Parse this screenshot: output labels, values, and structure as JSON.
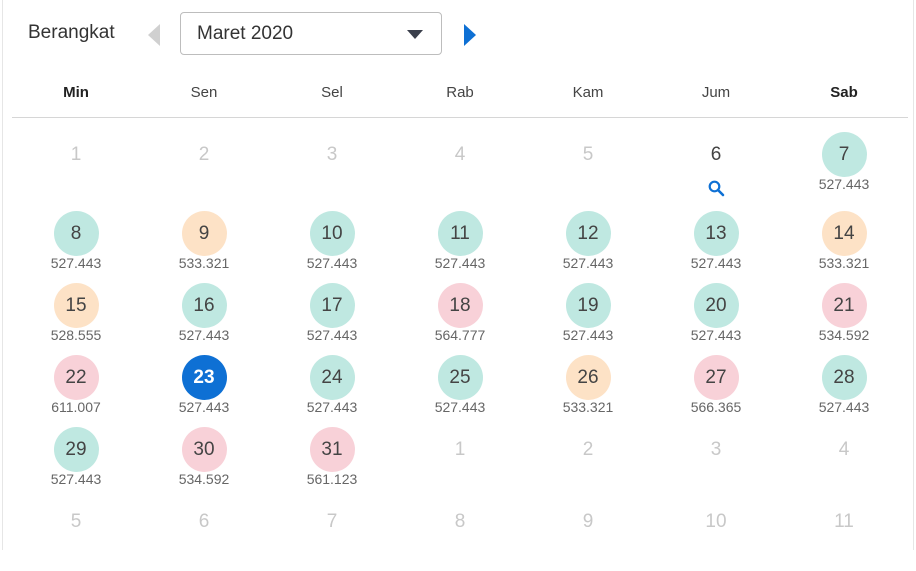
{
  "header": {
    "label": "Berangkat",
    "month_value": "Maret 2020"
  },
  "colors": {
    "green": "#bfe8e1",
    "orange": "#fde2c6",
    "pink": "#f8d1d8",
    "selected": "#0e70d4",
    "arrow_active": "#0e70d4",
    "arrow_disabled": "#d0d0d0"
  },
  "weekdays": [
    {
      "label": "Min",
      "bold": true
    },
    {
      "label": "Sen",
      "bold": false
    },
    {
      "label": "Sel",
      "bold": false
    },
    {
      "label": "Rab",
      "bold": false
    },
    {
      "label": "Kam",
      "bold": false
    },
    {
      "label": "Jum",
      "bold": false
    },
    {
      "label": "Sab",
      "bold": true
    }
  ],
  "weeks": [
    [
      {
        "day": "1",
        "state": "muted"
      },
      {
        "day": "2",
        "state": "muted"
      },
      {
        "day": "3",
        "state": "muted"
      },
      {
        "day": "4",
        "state": "muted"
      },
      {
        "day": "5",
        "state": "muted"
      },
      {
        "day": "6",
        "state": "plain",
        "icon": "search-icon"
      },
      {
        "day": "7",
        "state": "green",
        "price": "527.443"
      }
    ],
    [
      {
        "day": "8",
        "state": "green",
        "price": "527.443"
      },
      {
        "day": "9",
        "state": "orange",
        "price": "533.321"
      },
      {
        "day": "10",
        "state": "green",
        "price": "527.443"
      },
      {
        "day": "11",
        "state": "green",
        "price": "527.443"
      },
      {
        "day": "12",
        "state": "green",
        "price": "527.443"
      },
      {
        "day": "13",
        "state": "green",
        "price": "527.443"
      },
      {
        "day": "14",
        "state": "orange",
        "price": "533.321"
      }
    ],
    [
      {
        "day": "15",
        "state": "orange",
        "price": "528.555"
      },
      {
        "day": "16",
        "state": "green",
        "price": "527.443"
      },
      {
        "day": "17",
        "state": "green",
        "price": "527.443"
      },
      {
        "day": "18",
        "state": "pink",
        "price": "564.777"
      },
      {
        "day": "19",
        "state": "green",
        "price": "527.443"
      },
      {
        "day": "20",
        "state": "green",
        "price": "527.443"
      },
      {
        "day": "21",
        "state": "pink",
        "price": "534.592"
      }
    ],
    [
      {
        "day": "22",
        "state": "pink",
        "price": "611.007"
      },
      {
        "day": "23",
        "state": "selected",
        "price": "527.443"
      },
      {
        "day": "24",
        "state": "green",
        "price": "527.443"
      },
      {
        "day": "25",
        "state": "green",
        "price": "527.443"
      },
      {
        "day": "26",
        "state": "orange",
        "price": "533.321"
      },
      {
        "day": "27",
        "state": "pink",
        "price": "566.365"
      },
      {
        "day": "28",
        "state": "green",
        "price": "527.443"
      }
    ],
    [
      {
        "day": "29",
        "state": "green",
        "price": "527.443"
      },
      {
        "day": "30",
        "state": "pink",
        "price": "534.592"
      },
      {
        "day": "31",
        "state": "pink",
        "price": "561.123"
      },
      {
        "day": "1",
        "state": "muted"
      },
      {
        "day": "2",
        "state": "muted"
      },
      {
        "day": "3",
        "state": "muted"
      },
      {
        "day": "4",
        "state": "muted"
      }
    ],
    [
      {
        "day": "5",
        "state": "muted"
      },
      {
        "day": "6",
        "state": "muted"
      },
      {
        "day": "7",
        "state": "muted"
      },
      {
        "day": "8",
        "state": "muted"
      },
      {
        "day": "9",
        "state": "muted"
      },
      {
        "day": "10",
        "state": "muted"
      },
      {
        "day": "11",
        "state": "muted"
      }
    ]
  ]
}
